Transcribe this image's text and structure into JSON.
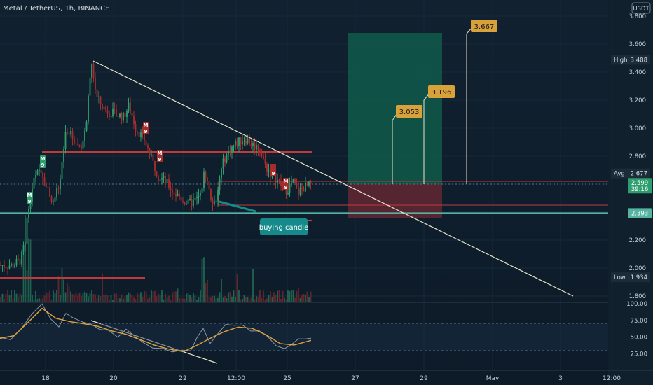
{
  "chart_data": {
    "type": "candlestick",
    "title": "Metal / TetherUS, 1h, BINANCE",
    "price_unit": "USDT",
    "price_axis": {
      "ticks": [
        "3.800",
        "3.600",
        "3.400",
        "3.200",
        "3.000",
        "2.800",
        "2.200",
        "2.000",
        "1.800"
      ],
      "ylim": [
        1.77,
        3.85
      ]
    },
    "x_axis_ticks": [
      "18",
      "20",
      "22",
      "12:00",
      "25",
      "27",
      "29",
      "May",
      "3",
      "12:00"
    ],
    "price_labels": [
      {
        "name": "High",
        "value": "3.488",
        "type": "stat"
      },
      {
        "name": "Avg",
        "value": "2.677",
        "type": "stat"
      },
      {
        "name": "",
        "value": "2.599",
        "sub": "39:16",
        "type": "current"
      },
      {
        "name": "",
        "value": "2.393",
        "type": "level"
      },
      {
        "name": "Low",
        "value": "1.934",
        "type": "stat"
      }
    ],
    "targets": [
      "3.053",
      "3.196",
      "3.667"
    ],
    "annotation": "buying candle",
    "signal_markers": [
      {
        "glyph": "M",
        "count": "9",
        "color": "#2f9e6f",
        "price": 2.5
      },
      {
        "glyph": "M",
        "count": "9",
        "color": "#2f9e6f",
        "price": 2.76
      },
      {
        "glyph": "M",
        "count": "9",
        "color": "#a72d2d",
        "price": 3.0
      },
      {
        "glyph": "M",
        "count": "9",
        "color": "#a72d2d",
        "price": 2.8
      },
      {
        "glyph": "",
        "count": "9",
        "color": "#a72d2d",
        "price": 2.7
      },
      {
        "glyph": "M",
        "count": "9",
        "color": "#a72d2d",
        "price": 2.6
      }
    ],
    "position": {
      "entry": 2.599,
      "target": 3.68,
      "stop": 2.36
    },
    "horizontal_levels": [
      2.83,
      2.62,
      2.6,
      2.45,
      2.393,
      2.34,
      1.93
    ],
    "oscillator": {
      "ticks": [
        "100.00",
        "75.00",
        "50.00",
        "25.00"
      ],
      "levels": [
        70,
        50,
        30
      ]
    },
    "colors": {
      "up": "#2f9e6f",
      "down": "#a72d2d",
      "trendline": "#e8e3c8",
      "target_box": "#0f5a4a",
      "stop_box": "#5e2633",
      "target_label": "#d8a13a",
      "callout": "#168a8a",
      "level_red": "#c03a3a",
      "level_teal": "#55b3a0",
      "osc_fast": "#8c9aa5",
      "osc_slow": "#e0a23c"
    }
  }
}
